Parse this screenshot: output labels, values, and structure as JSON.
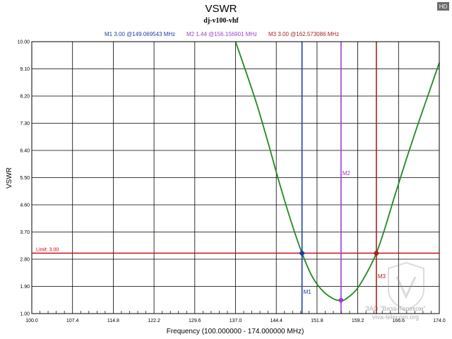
{
  "badge": "HD",
  "watermark": {
    "line1": "ЗАО \"Виза-Телеком\"",
    "line2": "viva-telecom.org"
  },
  "chart_data": {
    "type": "line",
    "title": "VSWR",
    "subtitle": "dj-v100-vhf",
    "xlabel": "Frequency (100.000000 - 174.000000 MHz)",
    "ylabel": "VSWR",
    "xlim": [
      100,
      174
    ],
    "ylim": [
      1,
      10
    ],
    "grid": true,
    "x_ticks": [
      "100.0",
      "107.4",
      "114.8",
      "122.2",
      "129.6",
      "137.0",
      "144.4",
      "151.8",
      "159.2",
      "166.6",
      "174.0"
    ],
    "y_ticks": [
      "1.00",
      "1.90",
      "2.80",
      "3.70",
      "4.60",
      "5.50",
      "6.40",
      "7.30",
      "8.20",
      "9.10",
      "10.00"
    ],
    "series": [
      {
        "color": "#1e8a1e",
        "x": [
          137.0,
          139.0,
          141.0,
          143.0,
          145.0,
          147.0,
          149.07,
          151.0,
          153.0,
          155.0,
          156.16,
          157.0,
          159.0,
          161.0,
          162.57,
          164.0,
          166.0,
          168.0,
          170.0,
          172.0,
          174.0
        ],
        "y": [
          10.0,
          8.95,
          7.85,
          6.6,
          5.3,
          4.1,
          3.0,
          2.2,
          1.72,
          1.47,
          1.44,
          1.48,
          1.8,
          2.4,
          3.0,
          3.75,
          4.95,
          6.1,
          7.2,
          8.25,
          9.3
        ]
      }
    ],
    "limit": {
      "label": "Limit: 3.00",
      "value": 3.0,
      "color": "#cc0000"
    },
    "markers": [
      {
        "name": "M1",
        "readout": "M1  3.00 @149.069543 MHz",
        "x": 149.069543,
        "y": 3.0,
        "color": "#1a3ea8"
      },
      {
        "name": "M2",
        "readout": "M2  1.44 @156.156901 MHz",
        "x": 156.156901,
        "y": 1.44,
        "color": "#9b3fcf"
      },
      {
        "name": "M3",
        "readout": "M3  3.00 @162.573086 MHz",
        "x": 162.573086,
        "y": 3.0,
        "color": "#a82222"
      }
    ]
  }
}
